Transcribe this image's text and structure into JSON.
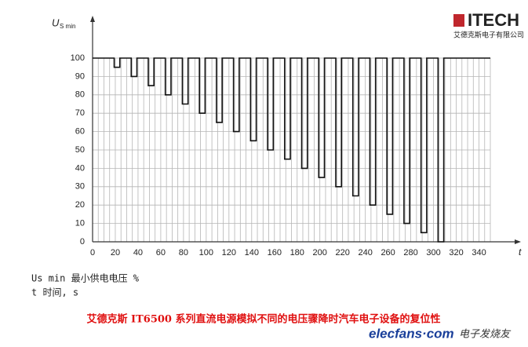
{
  "logo": {
    "brand": "ITECH",
    "company": "艾德克斯电子有限公司"
  },
  "chart_data": {
    "type": "line",
    "ylabel": "U",
    "ylabel_sub": "S min",
    "xlabel": "t",
    "xlim": [
      0,
      350
    ],
    "ylim": [
      0,
      100
    ],
    "xticks": [
      0,
      20,
      40,
      60,
      80,
      100,
      120,
      140,
      160,
      180,
      200,
      220,
      240,
      260,
      280,
      300,
      320,
      340
    ],
    "yticks": [
      0,
      10,
      20,
      30,
      40,
      50,
      60,
      70,
      80,
      90,
      100
    ],
    "x_grid": [
      0,
      5,
      10,
      15,
      20,
      25,
      30,
      35,
      40,
      45,
      50,
      55,
      60,
      65,
      70,
      75,
      80,
      85,
      90,
      95,
      100,
      105,
      110,
      115,
      120,
      125,
      130,
      135,
      140,
      145,
      150,
      155,
      160,
      165,
      170,
      175,
      180,
      185,
      190,
      195,
      200,
      205,
      210,
      215,
      220,
      225,
      230,
      235,
      240,
      245,
      250,
      255,
      260,
      265,
      270,
      275,
      280,
      285,
      290,
      295,
      300,
      305,
      310,
      315,
      320,
      325,
      330,
      335,
      340,
      345,
      350
    ],
    "grid": true,
    "series": [
      {
        "color": "#111111",
        "x": [
          0,
          19,
          19,
          24,
          24,
          34,
          34,
          39,
          39,
          49,
          49,
          54,
          54,
          64,
          64,
          69,
          69,
          79,
          79,
          84,
          84,
          94,
          94,
          99,
          99,
          109,
          109,
          114,
          114,
          124,
          124,
          129,
          129,
          139,
          139,
          144,
          144,
          154,
          154,
          159,
          159,
          169,
          169,
          174,
          174,
          184,
          184,
          189,
          189,
          199,
          199,
          204,
          204,
          214,
          214,
          219,
          219,
          229,
          229,
          234,
          234,
          244,
          244,
          249,
          249,
          259,
          259,
          264,
          264,
          274,
          274,
          279,
          279,
          289,
          289,
          294,
          294,
          304,
          304,
          309,
          309,
          350
        ],
        "values": [
          100,
          100,
          95,
          95,
          100,
          100,
          90,
          90,
          100,
          100,
          85,
          85,
          100,
          100,
          80,
          80,
          100,
          100,
          75,
          75,
          100,
          100,
          70,
          70,
          100,
          100,
          65,
          65,
          100,
          100,
          60,
          60,
          100,
          100,
          55,
          55,
          100,
          100,
          50,
          50,
          100,
          100,
          45,
          45,
          100,
          100,
          40,
          40,
          100,
          100,
          35,
          35,
          100,
          100,
          30,
          30,
          100,
          100,
          25,
          25,
          100,
          100,
          20,
          20,
          100,
          100,
          15,
          15,
          100,
          100,
          10,
          10,
          100,
          100,
          5,
          5,
          100,
          100,
          0,
          0,
          100,
          100
        ]
      }
    ]
  },
  "legend_notes": [
    "Us min 最小供电电压 %",
    "t 时间, s"
  ],
  "caption": "艾德克斯 IT6500 系列直流电源模拟不同的电压骤降时汽车电子设备的复位性",
  "watermark": {
    "site": "elecfans·com",
    "name": "电子发烧友"
  }
}
